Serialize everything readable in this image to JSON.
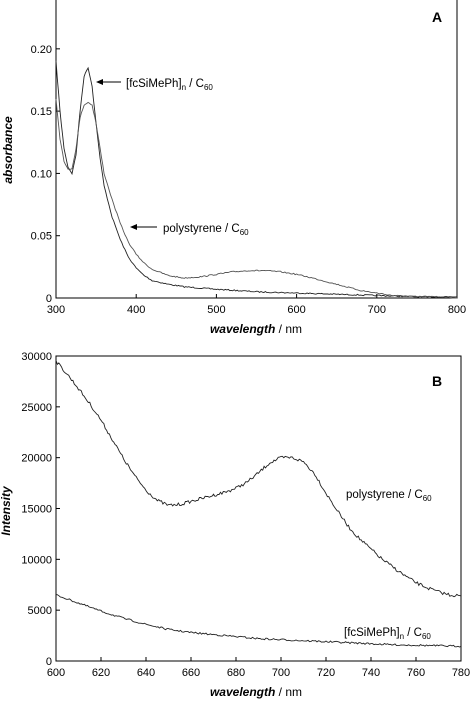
{
  "chart_data": [
    {
      "type": "line",
      "panel_label": "A",
      "xlabel": "wavelength",
      "xunit": "nm",
      "ylabel": "absorbance",
      "xlim": [
        300,
        800
      ],
      "ylim": [
        0,
        0.24
      ],
      "xticks": [
        300,
        400,
        500,
        600,
        700,
        800
      ],
      "yticks": [
        0,
        0.05,
        0.1,
        0.15,
        0.2
      ],
      "ytick_labels": [
        "0",
        "0.05",
        "0.10",
        "0.15",
        "0.20"
      ],
      "series": [
        {
          "name": "[fcSiMePh]n / C60",
          "label_main": "[fcSiMePh]",
          "label_sub1": "n",
          "label_mid": " / C",
          "label_sub2": "60",
          "x": [
            300,
            305,
            310,
            315,
            320,
            325,
            330,
            335,
            340,
            345,
            350,
            355,
            360,
            370,
            380,
            390,
            400,
            410,
            420,
            440,
            460,
            480,
            500,
            550,
            600,
            650,
            700,
            750,
            800
          ],
          "y": [
            0.19,
            0.15,
            0.12,
            0.105,
            0.1,
            0.115,
            0.15,
            0.178,
            0.185,
            0.17,
            0.14,
            0.112,
            0.09,
            0.065,
            0.047,
            0.033,
            0.024,
            0.018,
            0.014,
            0.011,
            0.009,
            0.008,
            0.007,
            0.005,
            0.004,
            0.003,
            0.002,
            0.001,
            0.001
          ]
        },
        {
          "name": "polystyrene / C60",
          "label_main": "polystyrene",
          "label_mid": " / C",
          "label_sub2": "60",
          "x": [
            300,
            305,
            310,
            315,
            320,
            325,
            330,
            335,
            340,
            345,
            350,
            355,
            360,
            370,
            380,
            390,
            400,
            410,
            420,
            440,
            460,
            480,
            500,
            520,
            540,
            560,
            580,
            600,
            620,
            650,
            680,
            700,
            720,
            750,
            780,
            800
          ],
          "y": [
            0.16,
            0.128,
            0.11,
            0.103,
            0.104,
            0.12,
            0.145,
            0.155,
            0.157,
            0.155,
            0.14,
            0.12,
            0.1,
            0.079,
            0.06,
            0.045,
            0.035,
            0.028,
            0.023,
            0.018,
            0.016,
            0.017,
            0.019,
            0.021,
            0.022,
            0.022,
            0.021,
            0.019,
            0.016,
            0.011,
            0.006,
            0.004,
            0.002,
            0.001,
            0.001,
            0.0
          ]
        }
      ]
    },
    {
      "type": "line",
      "panel_label": "B",
      "xlabel": "wavelength",
      "xunit": "nm",
      "ylabel": "Intensity",
      "xlim": [
        600,
        780
      ],
      "ylim": [
        0,
        30000
      ],
      "xticks": [
        600,
        620,
        640,
        660,
        680,
        700,
        720,
        740,
        760,
        780
      ],
      "yticks": [
        0,
        5000,
        10000,
        15000,
        20000,
        25000,
        30000
      ],
      "series": [
        {
          "name": "polystyrene / C60",
          "label_main": "polystyrene",
          "label_mid": " / C",
          "label_sub2": "60",
          "x": [
            600,
            605,
            610,
            615,
            620,
            625,
            630,
            635,
            640,
            645,
            650,
            655,
            660,
            665,
            670,
            675,
            680,
            685,
            690,
            695,
            700,
            705,
            710,
            715,
            720,
            725,
            730,
            735,
            740,
            745,
            750,
            755,
            760,
            765,
            770,
            775,
            780
          ],
          "y": [
            29500,
            28200,
            26800,
            25300,
            23700,
            21800,
            19900,
            18200,
            16800,
            15800,
            15300,
            15400,
            15700,
            16000,
            16300,
            16600,
            17000,
            17600,
            18500,
            19500,
            20000,
            20000,
            19600,
            18400,
            16500,
            14800,
            13200,
            12000,
            11000,
            10000,
            9200,
            8400,
            7700,
            7200,
            6800,
            6500,
            6400
          ]
        },
        {
          "name": "[fcSiMePh]n / C60",
          "label_main": "[fcSiMePh]",
          "label_sub1": "n",
          "label_mid": " / C",
          "label_sub2": "60",
          "x": [
            600,
            610,
            620,
            630,
            640,
            650,
            660,
            670,
            680,
            690,
            700,
            710,
            720,
            730,
            740,
            750,
            760,
            770,
            780
          ],
          "y": [
            6500,
            5700,
            4900,
            4200,
            3600,
            3100,
            2800,
            2600,
            2400,
            2200,
            2100,
            2000,
            1900,
            1800,
            1700,
            1600,
            1550,
            1500,
            1450
          ]
        }
      ]
    }
  ]
}
